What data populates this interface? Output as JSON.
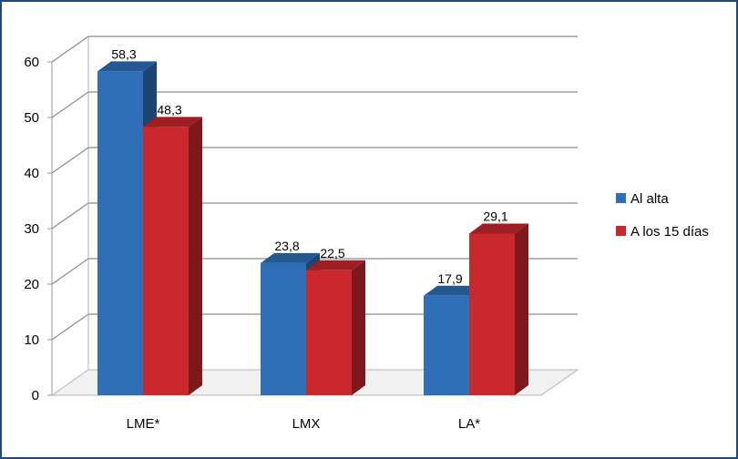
{
  "chart_data": {
    "type": "bar",
    "title": "",
    "xlabel": "",
    "ylabel": "",
    "categories": [
      "LME*",
      "LMX",
      "LA*"
    ],
    "series": [
      {
        "name": "Al alta",
        "values": [
          58.3,
          23.8,
          17.9
        ],
        "labels": [
          "58,3",
          "23,8",
          "17,9"
        ],
        "color": "#2f6fb8"
      },
      {
        "name": "A los 15 días",
        "values": [
          48.3,
          22.5,
          29.1
        ],
        "labels": [
          "48,3",
          "22,5",
          "29,1"
        ],
        "color": "#c9282d"
      }
    ],
    "ylim": [
      0,
      60
    ],
    "yticks": [
      0,
      10,
      20,
      30,
      40,
      50,
      60
    ],
    "grid": true,
    "legend_position": "right",
    "style": "3d-column"
  }
}
